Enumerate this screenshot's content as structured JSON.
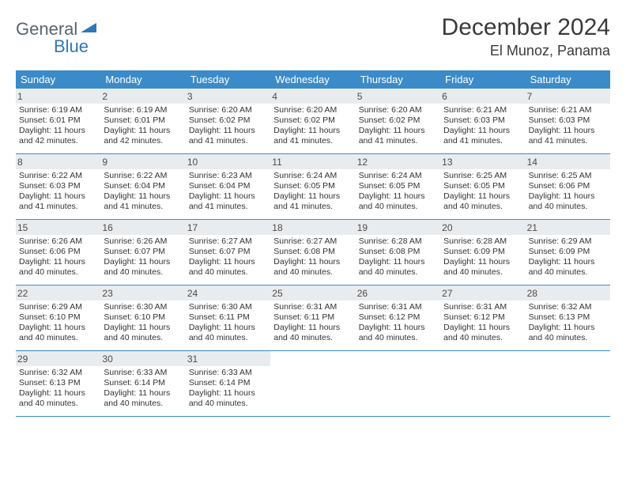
{
  "logo": {
    "text_general": "General",
    "text_blue": "Blue",
    "color_gray": "#5a6570",
    "color_blue": "#2e77b8",
    "arrow_color": "#2e77b8"
  },
  "title": {
    "month": "December 2024",
    "location": "El Munoz, Panama",
    "month_color": "#3a3a3a",
    "location_color": "#3a3a3a",
    "month_fontsize": 30,
    "location_fontsize": 18
  },
  "calendar": {
    "header_bg": "#3b8bc9",
    "header_text_color": "#ffffff",
    "daynum_bg": "#e9ecef",
    "daynum_color": "#4a4a4a",
    "body_text_color": "#333333",
    "row_border_color": "#3b8bc9",
    "background_color": "#ffffff",
    "days_of_week": [
      "Sunday",
      "Monday",
      "Tuesday",
      "Wednesday",
      "Thursday",
      "Friday",
      "Saturday"
    ],
    "weeks": [
      [
        {
          "n": "1",
          "sr": "Sunrise: 6:19 AM",
          "ss": "Sunset: 6:01 PM",
          "d1": "Daylight: 11 hours",
          "d2": "and 42 minutes."
        },
        {
          "n": "2",
          "sr": "Sunrise: 6:19 AM",
          "ss": "Sunset: 6:01 PM",
          "d1": "Daylight: 11 hours",
          "d2": "and 42 minutes."
        },
        {
          "n": "3",
          "sr": "Sunrise: 6:20 AM",
          "ss": "Sunset: 6:02 PM",
          "d1": "Daylight: 11 hours",
          "d2": "and 41 minutes."
        },
        {
          "n": "4",
          "sr": "Sunrise: 6:20 AM",
          "ss": "Sunset: 6:02 PM",
          "d1": "Daylight: 11 hours",
          "d2": "and 41 minutes."
        },
        {
          "n": "5",
          "sr": "Sunrise: 6:20 AM",
          "ss": "Sunset: 6:02 PM",
          "d1": "Daylight: 11 hours",
          "d2": "and 41 minutes."
        },
        {
          "n": "6",
          "sr": "Sunrise: 6:21 AM",
          "ss": "Sunset: 6:03 PM",
          "d1": "Daylight: 11 hours",
          "d2": "and 41 minutes."
        },
        {
          "n": "7",
          "sr": "Sunrise: 6:21 AM",
          "ss": "Sunset: 6:03 PM",
          "d1": "Daylight: 11 hours",
          "d2": "and 41 minutes."
        }
      ],
      [
        {
          "n": "8",
          "sr": "Sunrise: 6:22 AM",
          "ss": "Sunset: 6:03 PM",
          "d1": "Daylight: 11 hours",
          "d2": "and 41 minutes."
        },
        {
          "n": "9",
          "sr": "Sunrise: 6:22 AM",
          "ss": "Sunset: 6:04 PM",
          "d1": "Daylight: 11 hours",
          "d2": "and 41 minutes."
        },
        {
          "n": "10",
          "sr": "Sunrise: 6:23 AM",
          "ss": "Sunset: 6:04 PM",
          "d1": "Daylight: 11 hours",
          "d2": "and 41 minutes."
        },
        {
          "n": "11",
          "sr": "Sunrise: 6:24 AM",
          "ss": "Sunset: 6:05 PM",
          "d1": "Daylight: 11 hours",
          "d2": "and 41 minutes."
        },
        {
          "n": "12",
          "sr": "Sunrise: 6:24 AM",
          "ss": "Sunset: 6:05 PM",
          "d1": "Daylight: 11 hours",
          "d2": "and 40 minutes."
        },
        {
          "n": "13",
          "sr": "Sunrise: 6:25 AM",
          "ss": "Sunset: 6:05 PM",
          "d1": "Daylight: 11 hours",
          "d2": "and 40 minutes."
        },
        {
          "n": "14",
          "sr": "Sunrise: 6:25 AM",
          "ss": "Sunset: 6:06 PM",
          "d1": "Daylight: 11 hours",
          "d2": "and 40 minutes."
        }
      ],
      [
        {
          "n": "15",
          "sr": "Sunrise: 6:26 AM",
          "ss": "Sunset: 6:06 PM",
          "d1": "Daylight: 11 hours",
          "d2": "and 40 minutes."
        },
        {
          "n": "16",
          "sr": "Sunrise: 6:26 AM",
          "ss": "Sunset: 6:07 PM",
          "d1": "Daylight: 11 hours",
          "d2": "and 40 minutes."
        },
        {
          "n": "17",
          "sr": "Sunrise: 6:27 AM",
          "ss": "Sunset: 6:07 PM",
          "d1": "Daylight: 11 hours",
          "d2": "and 40 minutes."
        },
        {
          "n": "18",
          "sr": "Sunrise: 6:27 AM",
          "ss": "Sunset: 6:08 PM",
          "d1": "Daylight: 11 hours",
          "d2": "and 40 minutes."
        },
        {
          "n": "19",
          "sr": "Sunrise: 6:28 AM",
          "ss": "Sunset: 6:08 PM",
          "d1": "Daylight: 11 hours",
          "d2": "and 40 minutes."
        },
        {
          "n": "20",
          "sr": "Sunrise: 6:28 AM",
          "ss": "Sunset: 6:09 PM",
          "d1": "Daylight: 11 hours",
          "d2": "and 40 minutes."
        },
        {
          "n": "21",
          "sr": "Sunrise: 6:29 AM",
          "ss": "Sunset: 6:09 PM",
          "d1": "Daylight: 11 hours",
          "d2": "and 40 minutes."
        }
      ],
      [
        {
          "n": "22",
          "sr": "Sunrise: 6:29 AM",
          "ss": "Sunset: 6:10 PM",
          "d1": "Daylight: 11 hours",
          "d2": "and 40 minutes."
        },
        {
          "n": "23",
          "sr": "Sunrise: 6:30 AM",
          "ss": "Sunset: 6:10 PM",
          "d1": "Daylight: 11 hours",
          "d2": "and 40 minutes."
        },
        {
          "n": "24",
          "sr": "Sunrise: 6:30 AM",
          "ss": "Sunset: 6:11 PM",
          "d1": "Daylight: 11 hours",
          "d2": "and 40 minutes."
        },
        {
          "n": "25",
          "sr": "Sunrise: 6:31 AM",
          "ss": "Sunset: 6:11 PM",
          "d1": "Daylight: 11 hours",
          "d2": "and 40 minutes."
        },
        {
          "n": "26",
          "sr": "Sunrise: 6:31 AM",
          "ss": "Sunset: 6:12 PM",
          "d1": "Daylight: 11 hours",
          "d2": "and 40 minutes."
        },
        {
          "n": "27",
          "sr": "Sunrise: 6:31 AM",
          "ss": "Sunset: 6:12 PM",
          "d1": "Daylight: 11 hours",
          "d2": "and 40 minutes."
        },
        {
          "n": "28",
          "sr": "Sunrise: 6:32 AM",
          "ss": "Sunset: 6:13 PM",
          "d1": "Daylight: 11 hours",
          "d2": "and 40 minutes."
        }
      ],
      [
        {
          "n": "29",
          "sr": "Sunrise: 6:32 AM",
          "ss": "Sunset: 6:13 PM",
          "d1": "Daylight: 11 hours",
          "d2": "and 40 minutes."
        },
        {
          "n": "30",
          "sr": "Sunrise: 6:33 AM",
          "ss": "Sunset: 6:14 PM",
          "d1": "Daylight: 11 hours",
          "d2": "and 40 minutes."
        },
        {
          "n": "31",
          "sr": "Sunrise: 6:33 AM",
          "ss": "Sunset: 6:14 PM",
          "d1": "Daylight: 11 hours",
          "d2": "and 40 minutes."
        },
        null,
        null,
        null,
        null
      ]
    ]
  }
}
